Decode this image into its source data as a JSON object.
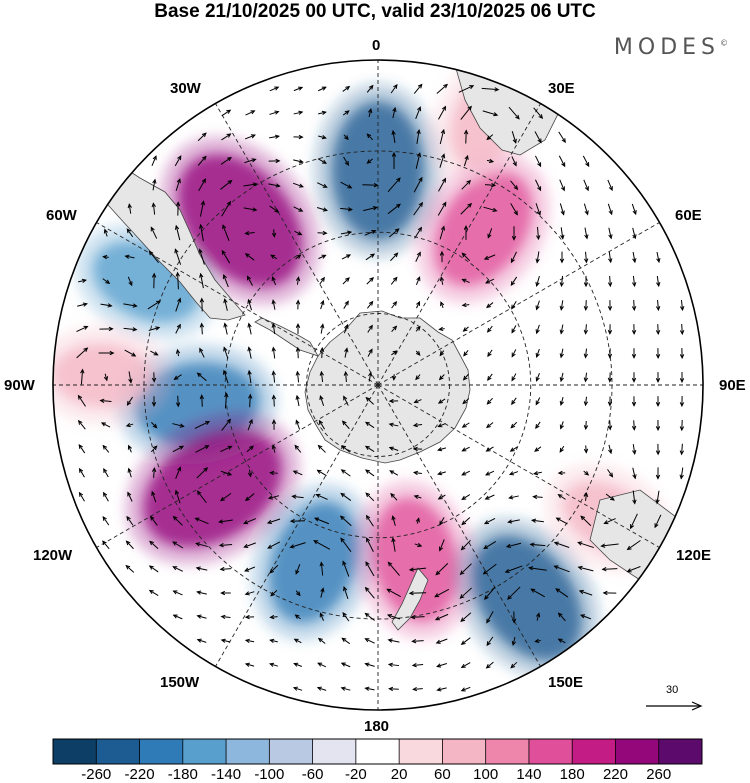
{
  "title": "Base 21/10/2025 00 UTC, valid 23/10/2025 06 UTC",
  "brand": "MODES",
  "brand_mark": "©",
  "lon_labels": {
    "n0": "0",
    "n30e": "30E",
    "n60e": "60E",
    "n90e": "90E",
    "n120e": "120E",
    "n150e": "150E",
    "n180": "180",
    "n150w": "150W",
    "n120w": "120W",
    "n90w": "90W",
    "n60w": "60W",
    "n30w": "30W"
  },
  "vector_scale": {
    "label": "30"
  },
  "colorbar": {
    "labels": [
      "-260",
      "-220",
      "-180",
      "-140",
      "-100",
      "-60",
      "-20",
      "20",
      "60",
      "100",
      "140",
      "180",
      "220",
      "260"
    ],
    "colors": [
      "#0c3e66",
      "#1d5c93",
      "#2f7bb7",
      "#589fcd",
      "#8db7dc",
      "#bac9e3",
      "#e4e3f0",
      "#ffffff",
      "#f9d9de",
      "#f4b6c4",
      "#ee86ab",
      "#e04f99",
      "#c31d85",
      "#93077a",
      "#5c0a6b"
    ]
  },
  "anomalies": [
    {
      "name": "anomaly-positive-south-atlantic",
      "value": 260,
      "color": "#93077a",
      "lon": -40,
      "r": 0.66
    },
    {
      "name": "anomaly-negative-south-atlantic",
      "value": -220,
      "color": "#1d5c93",
      "lon": 0,
      "r": 0.66
    },
    {
      "name": "anomaly-positive-east-atlantic",
      "value": 180,
      "color": "#e04f99",
      "lon": 34,
      "r": 0.58
    },
    {
      "name": "anomaly-negative-far-south-atlantic",
      "value": -140,
      "color": "#589fcd",
      "lon": -66,
      "r": 0.78
    },
    {
      "name": "anomaly-negative-southeast-pacific",
      "value": -180,
      "color": "#2f7bb7",
      "lon": -96,
      "r": 0.56
    },
    {
      "name": "anomaly-positive-southeast-pacific",
      "value": 260,
      "color": "#93077a",
      "lon": -122,
      "r": 0.6
    },
    {
      "name": "anomaly-negative-south-pacific",
      "value": -180,
      "color": "#2f7bb7",
      "lon": -160,
      "r": 0.58
    },
    {
      "name": "anomaly-positive-ross-sea",
      "value": 180,
      "color": "#e04f99",
      "lon": 168,
      "r": 0.55
    },
    {
      "name": "anomaly-negative-tasman",
      "value": -220,
      "color": "#1d5c93",
      "lon": 145,
      "r": 0.8
    },
    {
      "name": "anomaly-positive-australia-south",
      "value": 100,
      "color": "#f4b6c4",
      "lon": 120,
      "r": 0.82
    },
    {
      "name": "anomaly-positive-south-africa",
      "value": 100,
      "color": "#f4b6c4",
      "lon": 22,
      "r": 0.88
    },
    {
      "name": "anomaly-positive-southeast-pacific-far",
      "value": 100,
      "color": "#f4b6c4",
      "lon": -88,
      "r": 0.85
    }
  ]
}
